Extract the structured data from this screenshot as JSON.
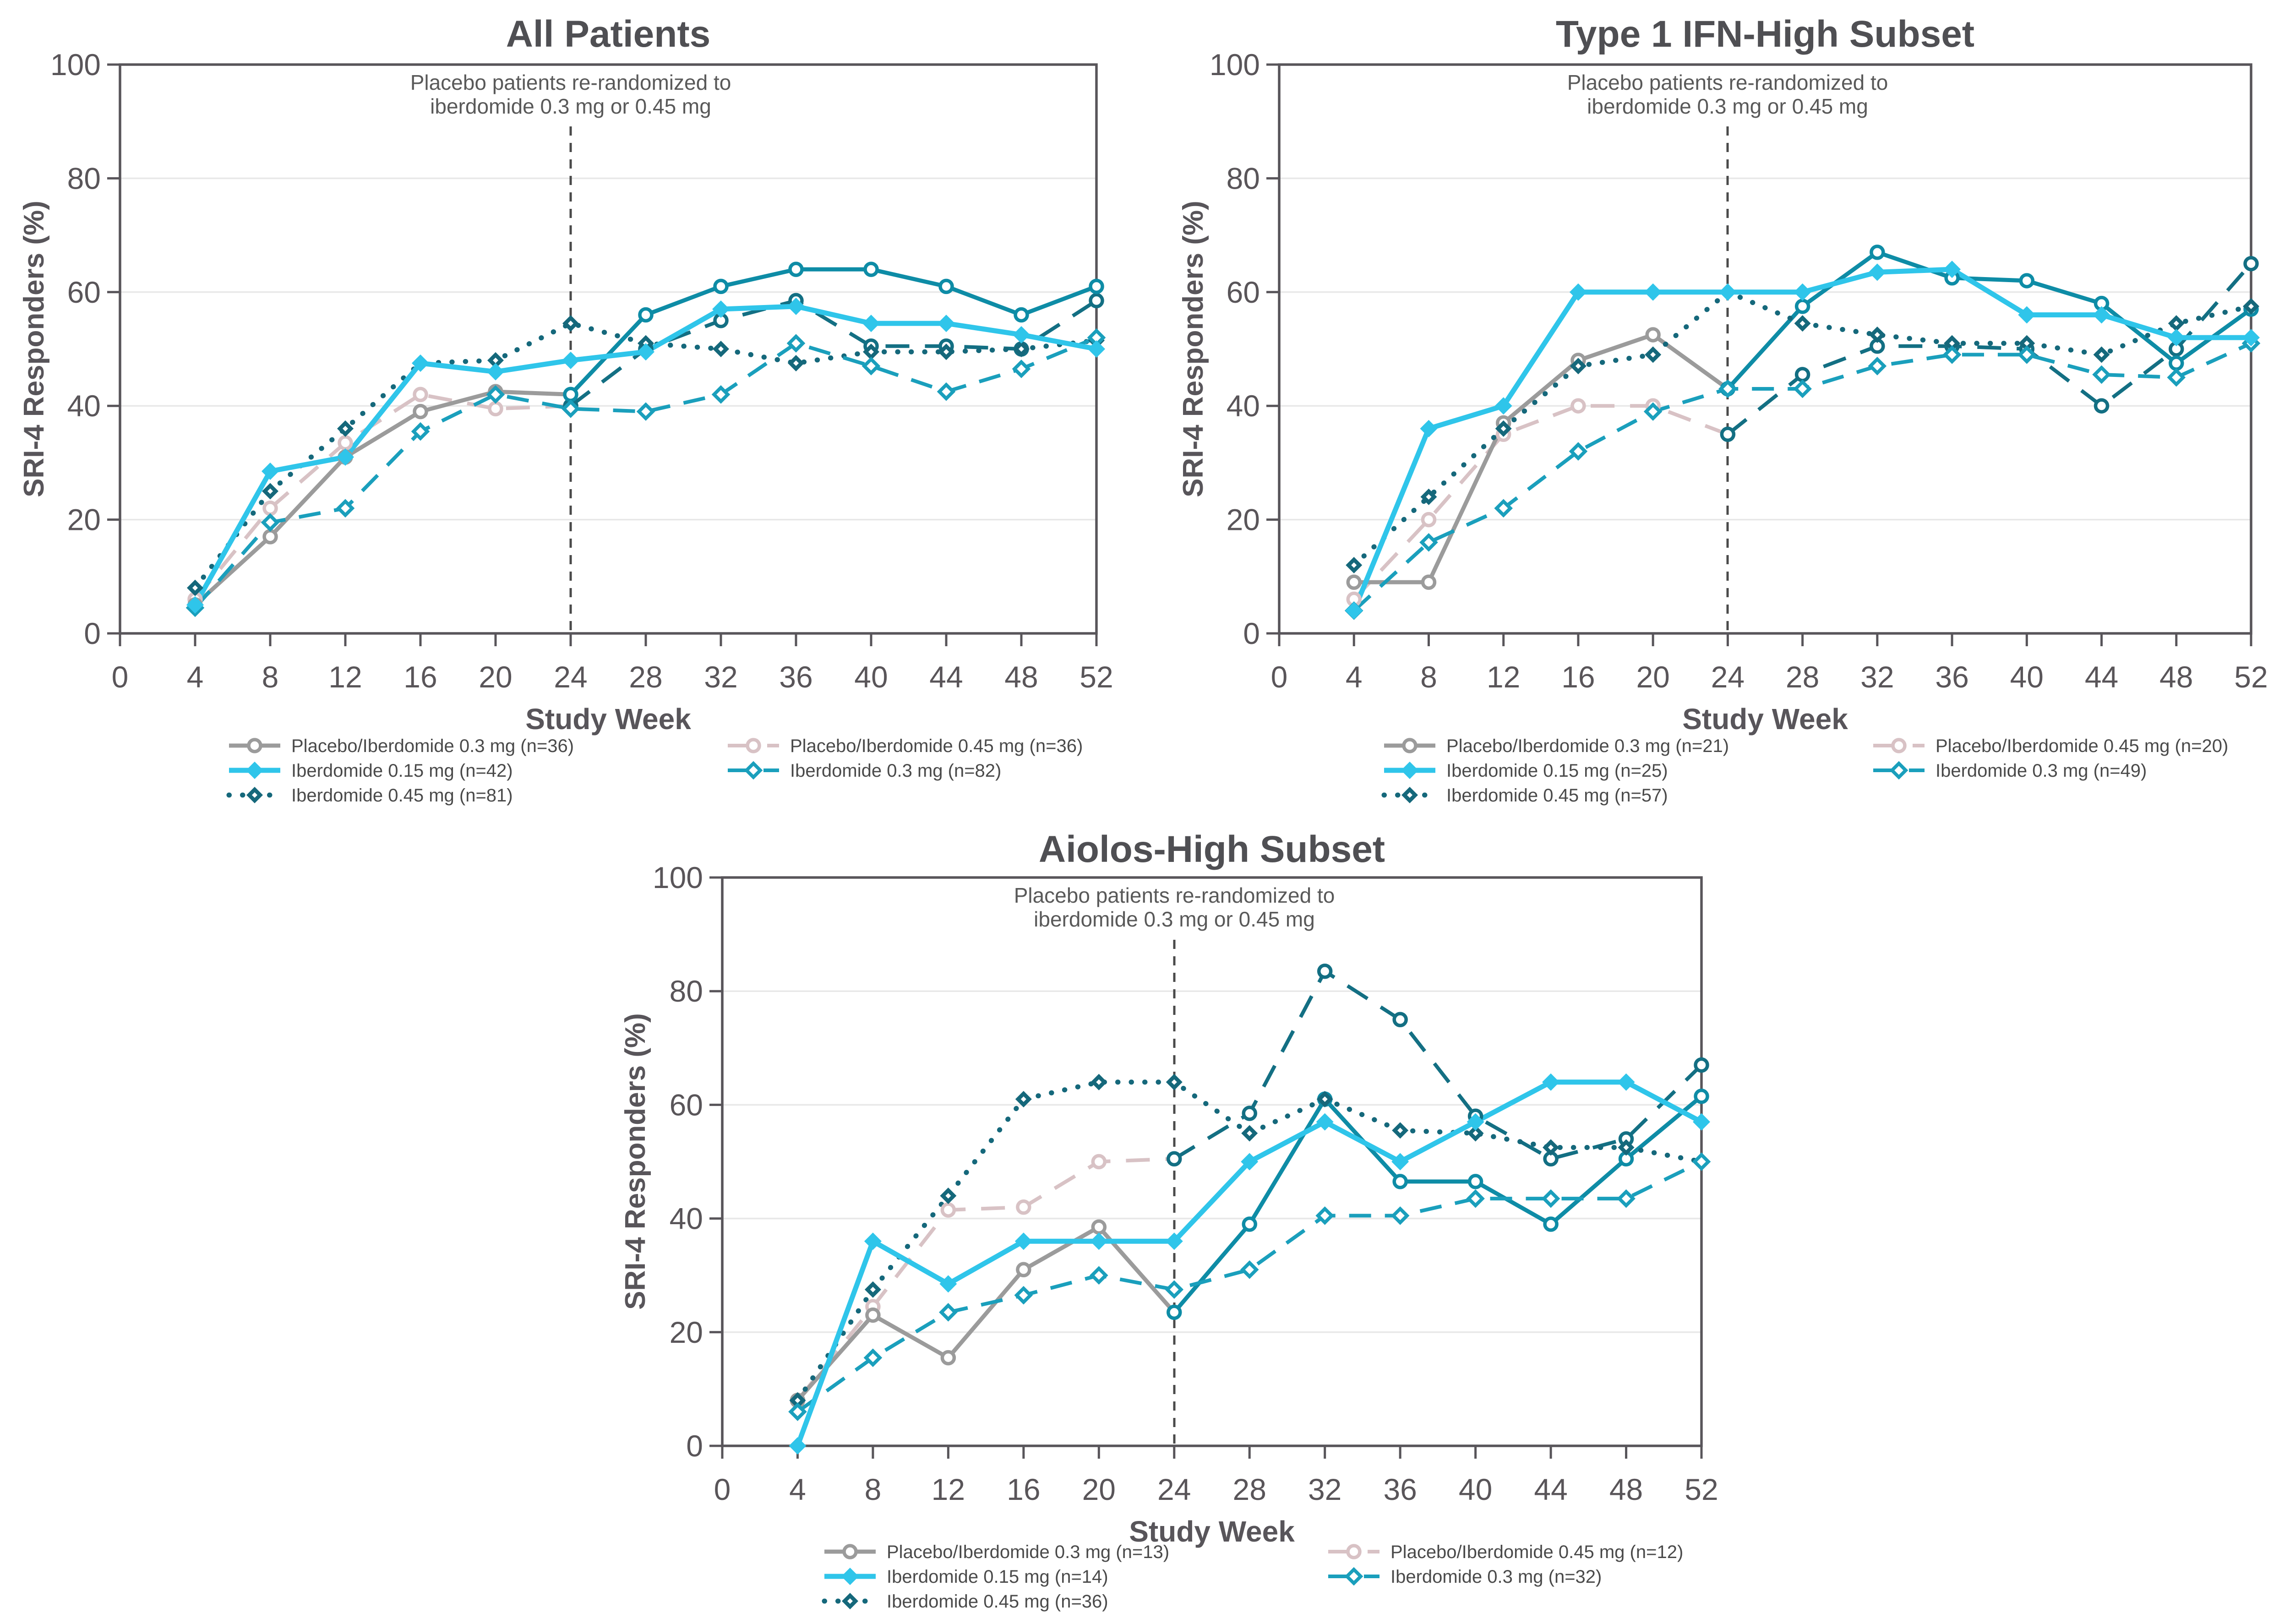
{
  "figure": {
    "ylabel": "SRI-4 Responders (%)",
    "xlabel": "Study Week",
    "annotation": [
      "Placebo patients re-randomized to",
      "iberdomide 0.3 mg or 0.45 mg"
    ]
  },
  "colors": {
    "gray": "#9B9B9B",
    "pink": "#D8C2C5",
    "cyan": "#2FC5EA",
    "teal_mid": "#1A9FBC",
    "teal_dark": "#15687B",
    "post_solid": "#0E8CA6",
    "post_dashed": "#136F83",
    "axis": "#58555A",
    "grid": "#E8E8E8",
    "title": "#4F4F53",
    "annotation_text": "#595959",
    "tick_text": "#595559",
    "legend_text": "#4A4A4A",
    "vline": "#4A4A4A"
  },
  "chart_data": [
    {
      "type": "line",
      "title": "All Patients",
      "xlabel": "Study Week",
      "ylabel": "SRI-4 Responders (%)",
      "annotation": [
        "Placebo patients re-randomized to",
        "iberdomide 0.3 mg or 0.45 mg"
      ],
      "rerandomization_week": 24,
      "x_weeks": [
        4,
        8,
        12,
        16,
        20,
        24,
        28,
        32,
        36,
        40,
        44,
        48,
        52
      ],
      "xticks": [
        0,
        4,
        8,
        12,
        16,
        20,
        24,
        28,
        32,
        36,
        40,
        44,
        48,
        52
      ],
      "yticks": [
        0,
        20,
        40,
        60,
        80,
        100
      ],
      "ylim": [
        0,
        100
      ],
      "legend_columns": [
        [
          "placebo03",
          "ib015",
          "ib045"
        ],
        [
          "placebo045",
          "ib03"
        ]
      ],
      "series": [
        {
          "id": "placebo03",
          "label": "Placebo/Iberdomide 0.3 mg",
          "n": 36,
          "values": [
            5,
            17,
            31,
            39,
            42.5,
            42,
            56,
            61,
            64,
            64,
            61,
            56,
            61
          ]
        },
        {
          "id": "placebo045",
          "label": "Placebo/Iberdomide 0.45 mg",
          "n": 36,
          "values": [
            6,
            22,
            33.5,
            42,
            39.5,
            40,
            50,
            55,
            58.5,
            50.5,
            50.5,
            50,
            58.5
          ]
        },
        {
          "id": "ib015",
          "label": "Iberdomide 0.15 mg",
          "n": 42,
          "values": [
            5,
            28.5,
            31,
            47.5,
            46,
            48,
            49.5,
            57,
            57.5,
            54.5,
            54.5,
            52.5,
            50
          ]
        },
        {
          "id": "ib03",
          "label": "Iberdomide 0.3 mg",
          "n": 82,
          "values": [
            4.5,
            19.5,
            22,
            35.5,
            42,
            39.5,
            39,
            42,
            51,
            47,
            42.5,
            46.5,
            52
          ]
        },
        {
          "id": "ib045",
          "label": "Iberdomide 0.45 mg",
          "n": 81,
          "values": [
            8,
            25,
            36,
            47.5,
            48,
            54.5,
            51,
            50,
            47.5,
            49.5,
            49.5,
            50,
            51.5
          ]
        }
      ]
    },
    {
      "type": "line",
      "title": "Type 1 IFN-High Subset",
      "xlabel": "Study Week",
      "ylabel": "SRI-4 Responders (%)",
      "annotation": [
        "Placebo patients re-randomized to",
        "iberdomide 0.3 mg or 0.45 mg"
      ],
      "rerandomization_week": 24,
      "x_weeks": [
        4,
        8,
        12,
        16,
        20,
        24,
        28,
        32,
        36,
        40,
        44,
        48,
        52
      ],
      "xticks": [
        0,
        4,
        8,
        12,
        16,
        20,
        24,
        28,
        32,
        36,
        40,
        44,
        48,
        52
      ],
      "yticks": [
        0,
        20,
        40,
        60,
        80,
        100
      ],
      "ylim": [
        0,
        100
      ],
      "legend_columns": [
        [
          "placebo03",
          "ib015",
          "ib045"
        ],
        [
          "placebo045",
          "ib03"
        ]
      ],
      "series": [
        {
          "id": "placebo03",
          "label": "Placebo/Iberdomide 0.3 mg",
          "n": 21,
          "values": [
            9,
            9,
            37,
            48,
            52.5,
            43,
            57.5,
            67,
            62.5,
            62,
            58,
            47.5,
            57
          ]
        },
        {
          "id": "placebo045",
          "label": "Placebo/Iberdomide 0.45 mg",
          "n": 20,
          "values": [
            6,
            20,
            35,
            40,
            40,
            35,
            45.5,
            50.5,
            50.5,
            50,
            40,
            50,
            65
          ]
        },
        {
          "id": "ib015",
          "label": "Iberdomide 0.15 mg",
          "n": 25,
          "values": [
            4,
            36,
            40,
            60,
            60,
            60,
            60,
            63.5,
            64,
            56,
            56,
            52,
            52
          ]
        },
        {
          "id": "ib03",
          "label": "Iberdomide 0.3 mg",
          "n": 49,
          "values": [
            4,
            16,
            22,
            32,
            39,
            43,
            43,
            47,
            49,
            49,
            45.5,
            45,
            51
          ]
        },
        {
          "id": "ib045",
          "label": "Iberdomide 0.45 mg",
          "n": 57,
          "values": [
            12,
            24,
            36,
            47,
            49,
            60,
            54.5,
            52.5,
            51,
            51,
            49,
            54.5,
            57.5
          ]
        }
      ]
    },
    {
      "type": "line",
      "title": "Aiolos-High Subset",
      "xlabel": "Study Week",
      "ylabel": "SRI-4 Responders (%)",
      "annotation": [
        "Placebo patients re-randomized to",
        "iberdomide 0.3 mg or 0.45 mg"
      ],
      "rerandomization_week": 24,
      "x_weeks": [
        4,
        8,
        12,
        16,
        20,
        24,
        28,
        32,
        36,
        40,
        44,
        48,
        52
      ],
      "xticks": [
        0,
        4,
        8,
        12,
        16,
        20,
        24,
        28,
        32,
        36,
        40,
        44,
        48,
        52
      ],
      "yticks": [
        0,
        20,
        40,
        60,
        80,
        100
      ],
      "ylim": [
        0,
        100
      ],
      "legend_columns": [
        [
          "placebo03",
          "ib015",
          "ib045"
        ],
        [
          "placebo045",
          "ib03"
        ]
      ],
      "series": [
        {
          "id": "placebo03",
          "label": "Placebo/Iberdomide 0.3 mg",
          "n": 13,
          "values": [
            8,
            23,
            15.5,
            31,
            38.5,
            23.5,
            39,
            61,
            46.5,
            46.5,
            39,
            50.5,
            61.5
          ]
        },
        {
          "id": "placebo045",
          "label": "Placebo/Iberdomide 0.45 mg",
          "n": 12,
          "values": [
            8,
            24.5,
            41.5,
            42,
            50,
            50.5,
            58.5,
            83.5,
            75,
            58,
            50.5,
            54,
            67
          ]
        },
        {
          "id": "ib015",
          "label": "Iberdomide 0.15 mg",
          "n": 14,
          "values": [
            0,
            36,
            28.5,
            36,
            36,
            36,
            50,
            57,
            50,
            57,
            64,
            64,
            57
          ]
        },
        {
          "id": "ib03",
          "label": "Iberdomide 0.3 mg",
          "n": 32,
          "values": [
            6,
            15.5,
            23.5,
            26.5,
            30,
            27.5,
            31,
            40.5,
            40.5,
            43.5,
            43.5,
            43.5,
            50
          ]
        },
        {
          "id": "ib045",
          "label": "Iberdomide 0.45 mg",
          "n": 36,
          "values": [
            8,
            27.5,
            44,
            61,
            64,
            64,
            55,
            61,
            55.5,
            55,
            52.5,
            52.5,
            50
          ]
        }
      ]
    }
  ]
}
